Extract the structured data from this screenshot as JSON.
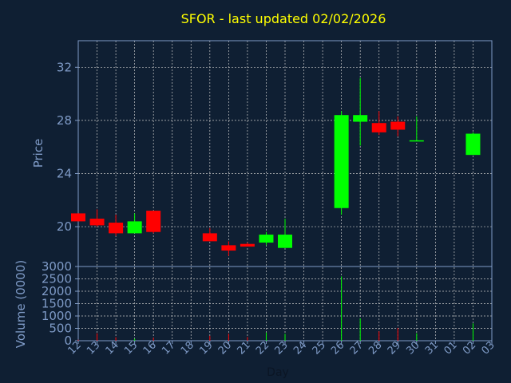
{
  "chart_data": [
    {
      "type": "candlestick",
      "title": "SFOR - last updated 02/02/2026",
      "ylabel": "Price",
      "ylim": [
        17,
        34
      ],
      "yticks": [
        20,
        24,
        28,
        32
      ],
      "grid": true,
      "colors": {
        "up": "#00ff00",
        "down": "#ff0000"
      },
      "candles": [
        {
          "day": "12",
          "open": 21.0,
          "high": 21.0,
          "low": 20.4,
          "close": 20.4
        },
        {
          "day": "13",
          "open": 20.6,
          "high": 21.3,
          "low": 20.0,
          "close": 20.1
        },
        {
          "day": "14",
          "open": 20.3,
          "high": 20.9,
          "low": 19.3,
          "close": 19.5
        },
        {
          "day": "15",
          "open": 19.5,
          "high": 21.0,
          "low": 19.5,
          "close": 20.4
        },
        {
          "day": "16",
          "open": 21.2,
          "high": 21.2,
          "low": 19.5,
          "close": 19.6
        },
        {
          "day": "19",
          "open": 19.5,
          "high": 19.9,
          "low": 18.9,
          "close": 18.9
        },
        {
          "day": "20",
          "open": 18.6,
          "high": 18.9,
          "low": 17.8,
          "close": 18.2
        },
        {
          "day": "21",
          "open": 18.7,
          "high": 18.8,
          "low": 18.5,
          "close": 18.5
        },
        {
          "day": "22",
          "open": 18.8,
          "high": 19.6,
          "low": 18.6,
          "close": 19.4
        },
        {
          "day": "23",
          "open": 18.4,
          "high": 20.6,
          "low": 18.4,
          "close": 19.4
        },
        {
          "day": "26",
          "open": 21.4,
          "high": 28.7,
          "low": 20.9,
          "close": 28.4
        },
        {
          "day": "27",
          "open": 27.9,
          "high": 31.2,
          "low": 26.1,
          "close": 28.4
        },
        {
          "day": "28",
          "open": 27.8,
          "high": 28.7,
          "low": 26.9,
          "close": 27.1
        },
        {
          "day": "29",
          "open": 27.9,
          "high": 28.3,
          "low": 26.8,
          "close": 27.3
        },
        {
          "day": "30",
          "open": 26.5,
          "high": 28.3,
          "low": 26.5,
          "close": 26.5
        },
        {
          "day": "02",
          "open": 25.4,
          "high": 27.1,
          "low": 25.4,
          "close": 27.0
        }
      ]
    },
    {
      "type": "bar",
      "ylabel": "Volume (0000)",
      "xlabel": "Day",
      "ylim": [
        0,
        3000
      ],
      "yticks": [
        0,
        500,
        1000,
        1500,
        2000,
        2500,
        3000
      ],
      "grid": true,
      "categories": [
        "12",
        "13",
        "14",
        "15",
        "16",
        "17",
        "18",
        "19",
        "20",
        "21",
        "22",
        "23",
        "24",
        "25",
        "26",
        "27",
        "28",
        "29",
        "30",
        "31",
        "01",
        "02",
        "03"
      ],
      "volumes": [
        {
          "day": "12",
          "value": 40,
          "color": "#ff0000"
        },
        {
          "day": "13",
          "value": 300,
          "color": "#ff0000"
        },
        {
          "day": "14",
          "value": 140,
          "color": "#ff0000"
        },
        {
          "day": "15",
          "value": 80,
          "color": "#00ff00"
        },
        {
          "day": "16",
          "value": 120,
          "color": "#ff0000"
        },
        {
          "day": "19",
          "value": 200,
          "color": "#ff0000"
        },
        {
          "day": "20",
          "value": 280,
          "color": "#ff0000"
        },
        {
          "day": "21",
          "value": 150,
          "color": "#ff0000"
        },
        {
          "day": "22",
          "value": 330,
          "color": "#00ff00"
        },
        {
          "day": "23",
          "value": 280,
          "color": "#00ff00"
        },
        {
          "day": "26",
          "value": 2600,
          "color": "#00ff00"
        },
        {
          "day": "27",
          "value": 900,
          "color": "#00ff00"
        },
        {
          "day": "28",
          "value": 380,
          "color": "#ff0000"
        },
        {
          "day": "29",
          "value": 520,
          "color": "#ff0000"
        },
        {
          "day": "30",
          "value": 300,
          "color": "#00ff00"
        },
        {
          "day": "02",
          "value": 700,
          "color": "#00ff00"
        }
      ]
    }
  ]
}
